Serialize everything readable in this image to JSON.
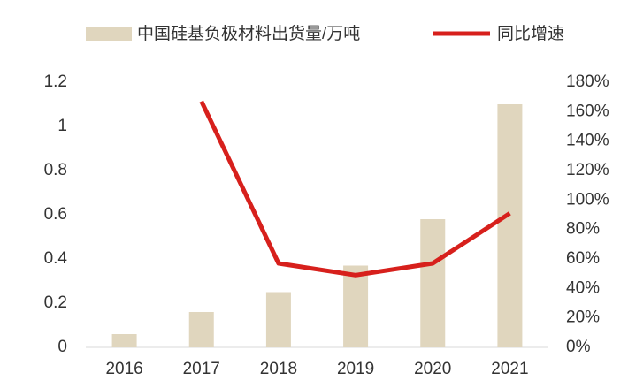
{
  "chart_data": {
    "type": "bar",
    "categories": [
      "2016",
      "2017",
      "2018",
      "2019",
      "2020",
      "2021"
    ],
    "series": [
      {
        "name": "中国硅基负极材料出货量/万吨",
        "type": "bar",
        "color": "#e0d6be",
        "values": [
          0.06,
          0.16,
          0.25,
          0.37,
          0.58,
          1.1
        ]
      },
      {
        "name": "同比增速",
        "type": "line",
        "axis": "y2",
        "color": "#d7201c",
        "values": [
          null,
          167,
          57,
          49,
          57,
          91
        ]
      }
    ],
    "ylim": [
      0,
      1.2
    ],
    "yticks": [
      0,
      0.2,
      0.4,
      0.6,
      0.8,
      1,
      1.2
    ],
    "y2lim": [
      0,
      180
    ],
    "y2ticks": [
      {
        "value": 0,
        "label": "0%"
      },
      {
        "value": 20,
        "label": "20%"
      },
      {
        "value": 40,
        "label": "40%"
      },
      {
        "value": 60,
        "label": "60%"
      },
      {
        "value": 80,
        "label": "80%"
      },
      {
        "value": 100,
        "label": "100%"
      },
      {
        "value": 120,
        "label": "120%"
      },
      {
        "value": 140,
        "label": "140%"
      },
      {
        "value": 160,
        "label": "160%"
      },
      {
        "value": 180,
        "label": "180%"
      }
    ],
    "legend": "top"
  }
}
